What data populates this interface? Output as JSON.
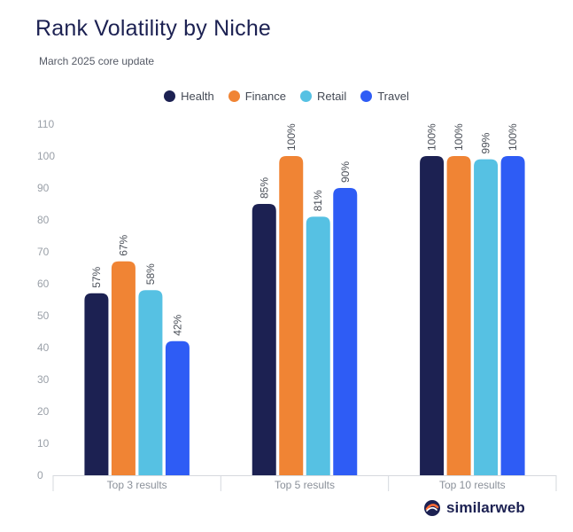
{
  "title": "Rank Volatility by Niche",
  "subtitle": "March 2025 core update",
  "brand": {
    "name": "similarweb",
    "icon": "similarweb-logo-icon",
    "color": "#ff6b35"
  },
  "chart_data": {
    "type": "bar",
    "categories": [
      "Top 3 results",
      "Top 5 results",
      "Top 10 results"
    ],
    "series": [
      {
        "name": "Health",
        "color": "#1c2152",
        "values": [
          57,
          85,
          100
        ],
        "labels": [
          "57%",
          "85%",
          "100%"
        ]
      },
      {
        "name": "Finance",
        "color": "#f08434",
        "values": [
          67,
          100,
          100
        ],
        "labels": [
          "67%",
          "100%",
          "100%"
        ]
      },
      {
        "name": "Retail",
        "color": "#56c1e3",
        "values": [
          58,
          81,
          99
        ],
        "labels": [
          "58%",
          "81%",
          "99%"
        ]
      },
      {
        "name": "Travel",
        "color": "#2e5cf5",
        "values": [
          42,
          90,
          100
        ],
        "labels": [
          "42%",
          "90%",
          "100%"
        ]
      }
    ],
    "yticks": [
      0,
      10,
      20,
      30,
      40,
      50,
      60,
      70,
      80,
      90,
      100,
      110
    ],
    "ylim": [
      0,
      110
    ],
    "grid": false,
    "legend_position": "top-center"
  }
}
